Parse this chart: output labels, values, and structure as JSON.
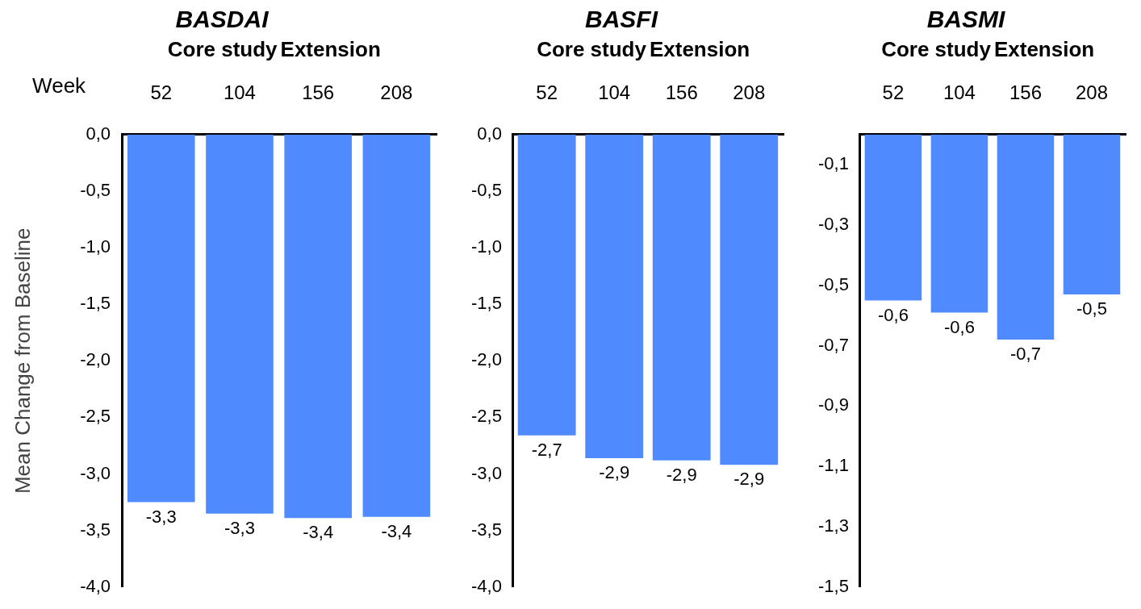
{
  "chart_data": [
    {
      "type": "bar",
      "title": "BASDAI",
      "ylabel": "Mean Change from Baseline",
      "annotations": [
        "Core study",
        "Extension",
        "Week"
      ],
      "categories": [
        "52",
        "104",
        "156",
        "208"
      ],
      "values": [
        -3.25,
        -3.35,
        -3.39,
        -3.38
      ],
      "value_labels": [
        "-3,3",
        "-3,3",
        "-3,4",
        "-3,4"
      ],
      "color": "#4f8bff",
      "ylim": [
        -4,
        0
      ],
      "yticks": [
        {
          "value": -4,
          "label": "-4,0"
        },
        {
          "value": -3.5,
          "label": "-3,5"
        },
        {
          "value": -3,
          "label": "-3,0"
        },
        {
          "value": -2.5,
          "label": "-2,5"
        },
        {
          "value": -2,
          "label": "-2,0"
        },
        {
          "value": -1.5,
          "label": "-1,5"
        },
        {
          "value": -1,
          "label": "-1,0"
        },
        {
          "value": -0.5,
          "label": "-0,5"
        },
        {
          "value": 0,
          "label": "0,0"
        }
      ],
      "grid": false
    },
    {
      "type": "bar",
      "title": "BASFI",
      "annotations": [
        "Core study",
        "Extension"
      ],
      "categories": [
        "52",
        "104",
        "156",
        "208"
      ],
      "values": [
        -2.66,
        -2.86,
        -2.88,
        -2.92
      ],
      "value_labels": [
        "-2,7",
        "-2,9",
        "-2,9",
        "-2,9"
      ],
      "color": "#4f8bff",
      "ylim": [
        -4,
        0
      ],
      "yticks": [
        {
          "value": -4,
          "label": "-4,0"
        },
        {
          "value": -3.5,
          "label": "-3,5"
        },
        {
          "value": -3,
          "label": "-3,0"
        },
        {
          "value": -2.5,
          "label": "-2,5"
        },
        {
          "value": -2,
          "label": "-2,0"
        },
        {
          "value": -1.5,
          "label": "-1,5"
        },
        {
          "value": -1,
          "label": "-1,0"
        },
        {
          "value": -0.5,
          "label": "-0,5"
        },
        {
          "value": 0,
          "label": "0,0"
        }
      ],
      "grid": false
    },
    {
      "type": "bar",
      "title": "BASMI",
      "annotations": [
        "Core study",
        "Extension"
      ],
      "categories": [
        "52",
        "104",
        "156",
        "208"
      ],
      "values": [
        -0.55,
        -0.59,
        -0.68,
        -0.53
      ],
      "value_labels": [
        "-0,6",
        "-0,6",
        "-0,7",
        "-0,5"
      ],
      "color": "#4f8bff",
      "ylim": [
        -1.5,
        0
      ],
      "yticks": [
        {
          "value": -1.5,
          "label": "-1,5"
        },
        {
          "value": -1.3,
          "label": "-1,3"
        },
        {
          "value": -1.1,
          "label": "-1,1"
        },
        {
          "value": -0.9,
          "label": "-0,9"
        },
        {
          "value": -0.7,
          "label": "-0,7"
        },
        {
          "value": -0.5,
          "label": "-0,5"
        },
        {
          "value": -0.3,
          "label": "-0,3"
        },
        {
          "value": -0.1,
          "label": "-0,1"
        }
      ],
      "grid": false
    }
  ]
}
